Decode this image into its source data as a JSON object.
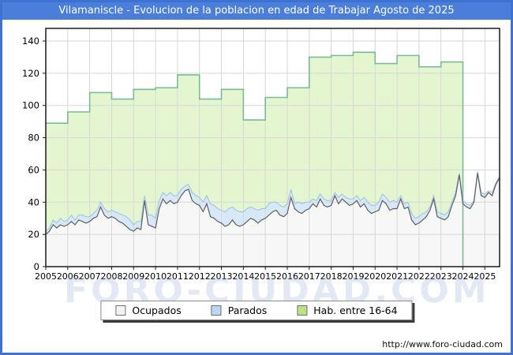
{
  "title": "Vilamaniscle - Evolucion de la poblacion en edad de Trabajar Agosto de 2025",
  "watermark": "FORO-CIUDAD.COM",
  "footer": {
    "url": "http://www.foro-ciudad.com"
  },
  "legend": {
    "items": [
      {
        "label": "Ocupados",
        "color": "#f4f4f4",
        "border": "#707070"
      },
      {
        "label": "Parados",
        "color": "#bdd7f2",
        "border": "#707070"
      },
      {
        "label": "Hab. entre 16-64",
        "color": "#b9e383",
        "border": "#707070"
      }
    ]
  },
  "chart_data": {
    "type": "area",
    "title": "Vilamaniscle - Evolucion de la poblacion en edad de Trabajar Agosto de 2025",
    "xlabel": "",
    "ylabel": "",
    "x_axis": {
      "start": 2005,
      "end": 2025.67,
      "tick_labels": [
        "2005",
        "2006",
        "2007",
        "2008",
        "2009",
        "2010",
        "2011",
        "2012",
        "2013",
        "2014",
        "2015",
        "2016",
        "2017",
        "2018",
        "2019",
        "2020",
        "2021",
        "2022",
        "2023",
        "2024",
        "2025"
      ],
      "grid": true
    },
    "y_axis": {
      "ticks": [
        0,
        20,
        40,
        60,
        80,
        100,
        120,
        140
      ],
      "min": 0,
      "max": 147,
      "grid": true
    },
    "legend_position": "bottom",
    "series": [
      {
        "name": "Hab. entre 16-64",
        "kind": "annual-step",
        "start_year": 2005,
        "end_x": 2024.0,
        "fill": "#e4f6d0",
        "stroke": "#79bb94",
        "values": [
          89,
          96,
          108,
          104,
          110,
          111,
          119,
          104,
          110,
          91,
          105,
          111,
          130,
          131,
          133,
          126,
          131,
          124,
          127
        ]
      },
      {
        "name": "Parados",
        "kind": "bimonthly-stacked",
        "stacked_on": "Ocupados",
        "start": 2005,
        "step_years": 0.166667,
        "fill": "#d7e9f9",
        "stroke": "#a5c6e6",
        "values": [
          2,
          2,
          3,
          3,
          4,
          3,
          3,
          4,
          3,
          3,
          4,
          4,
          3,
          3,
          4,
          3,
          4,
          4,
          4,
          4,
          5,
          5,
          6,
          6,
          4,
          4,
          5,
          3,
          6,
          7,
          6,
          5,
          4,
          5,
          5,
          5,
          4,
          4,
          3,
          3,
          5,
          5,
          5,
          6,
          5,
          8,
          8,
          8,
          8,
          9,
          10,
          8,
          9,
          9,
          8,
          8,
          7,
          7,
          8,
          7,
          6,
          7,
          6,
          5,
          6,
          6,
          6,
          5,
          3,
          6,
          6,
          5,
          4,
          3,
          4,
          3,
          4,
          4,
          3,
          2,
          4,
          3,
          3,
          4,
          3,
          3,
          4,
          4,
          5,
          5,
          4,
          5,
          4,
          4,
          5,
          5,
          4,
          2,
          3,
          3,
          4,
          4,
          4,
          4,
          3,
          2,
          2,
          3,
          3,
          3,
          3,
          2,
          2,
          1,
          2,
          2,
          2,
          1,
          1,
          2,
          2,
          1,
          2,
          1,
          1
        ]
      },
      {
        "name": "Ocupados",
        "kind": "bimonthly",
        "start": 2005,
        "step_years": 0.166667,
        "fill": "#f7f7f7",
        "stroke": "#5f5f5f",
        "values": [
          20,
          22,
          26,
          24,
          26,
          25,
          26,
          28,
          26,
          29,
          28,
          27,
          28,
          30,
          31,
          37,
          32,
          30,
          31,
          30,
          28,
          27,
          25,
          23,
          22,
          24,
          23,
          41,
          26,
          25,
          24,
          36,
          42,
          39,
          41,
          39,
          40,
          44,
          47,
          48,
          41,
          39,
          38,
          34,
          39,
          31,
          30,
          28,
          27,
          25,
          26,
          29,
          26,
          25,
          26,
          28,
          30,
          29,
          27,
          29,
          30,
          32,
          34,
          35,
          32,
          31,
          33,
          43,
          36,
          34,
          33,
          35,
          36,
          39,
          37,
          42,
          38,
          37,
          38,
          44,
          39,
          42,
          40,
          38,
          39,
          41,
          37,
          39,
          35,
          33,
          34,
          35,
          41,
          39,
          35,
          36,
          36,
          42,
          36,
          37,
          29,
          26,
          27,
          29,
          31,
          35,
          42,
          31,
          30,
          29,
          31,
          38,
          44,
          57,
          39,
          37,
          36,
          40,
          58,
          44,
          43,
          46,
          44,
          51,
          55
        ]
      }
    ]
  }
}
